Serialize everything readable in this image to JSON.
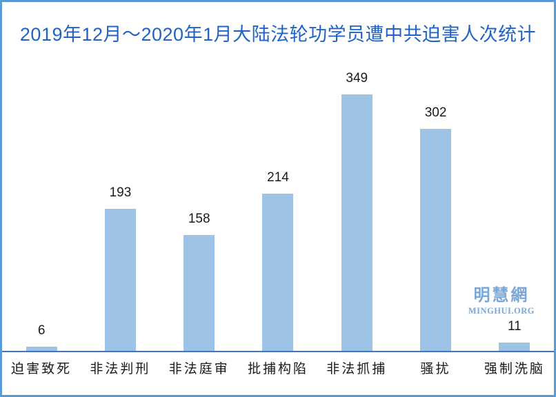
{
  "title": "2019年12月～2020年1月大陆法轮功学员遭中共迫害人次统计",
  "watermark": {
    "cn": "明慧網",
    "en": "MINGHUI.ORG"
  },
  "colors": {
    "frame": "#5B9BD5",
    "title_text": "#1F63C8",
    "bar_fill": "#9DC3E6",
    "axis_line": "#4472C4",
    "data_label": "#1A1A1A",
    "watermark_text": "#7BA7D7"
  },
  "chart_data": {
    "type": "bar",
    "title": "2019年12月～2020年1月大陆法轮功学员遭中共迫害人次统计",
    "categories": [
      "迫害致死",
      "非法判刑",
      "非法庭审",
      "批捕构陷",
      "非法抓捕",
      "骚扰",
      "强制洗脑"
    ],
    "values": [
      6,
      193,
      158,
      214,
      349,
      302,
      11
    ],
    "series_name": "迫害人次",
    "xlabel": "",
    "ylabel": "",
    "ylim": [
      0,
      360
    ],
    "grid": false,
    "legend": false,
    "value_labels": true,
    "orientation": "vertical"
  }
}
